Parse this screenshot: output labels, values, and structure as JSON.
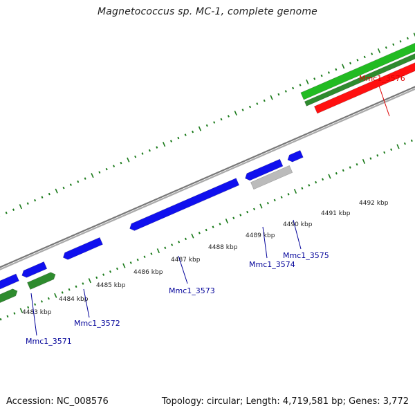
{
  "title": "Magnetococcus sp. MC-1, complete genome",
  "footer": {
    "accession": "Accession: NC_008576",
    "summary": "Topology: circular; Length: 4,719,581 bp; Genes: 3,772"
  },
  "colors": {
    "background": "#ffffff",
    "backbone": "#888888",
    "tick": "#1a7a1a",
    "forward_cds": "#22bb22",
    "forward_gene": "#2e8b2e",
    "reverse_cds": "#1010ee",
    "reverse_gene_grey": "#bbbbbb",
    "highlight_red": "#ff1010",
    "label_blue": "#000099",
    "label_red": "#dd0000"
  },
  "kbp_ticks": [
    {
      "text": "4483 kbp",
      "pos": 4483
    },
    {
      "text": "4484 kbp",
      "pos": 4484
    },
    {
      "text": "4485 kbp",
      "pos": 4485
    },
    {
      "text": "4486 kbp",
      "pos": 4486
    },
    {
      "text": "4487 kbp",
      "pos": 4487
    },
    {
      "text": "4488 kbp",
      "pos": 4488
    },
    {
      "text": "4489 kbp",
      "pos": 4489
    },
    {
      "text": "4490 kbp",
      "pos": 4490
    },
    {
      "text": "4491 kbp",
      "pos": 4491
    },
    {
      "text": "4492 kbp",
      "pos": 4492
    }
  ],
  "gene_labels": [
    {
      "text": "Mmc1_3571",
      "color": "blue"
    },
    {
      "text": "Mmc1_3572",
      "color": "blue"
    },
    {
      "text": "Mmc1_3573",
      "color": "blue"
    },
    {
      "text": "Mmc1_3574",
      "color": "blue"
    },
    {
      "text": "Mmc1_3575",
      "color": "blue"
    },
    {
      "text": "Mmc1_3576",
      "color": "red"
    }
  ]
}
